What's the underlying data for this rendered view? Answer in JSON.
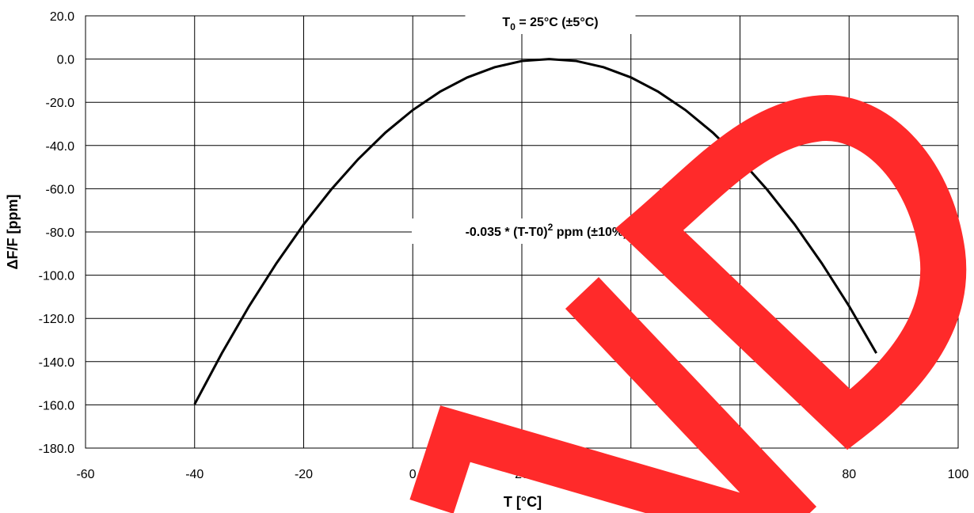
{
  "chart_data": {
    "type": "line",
    "annotations": [
      [
        "T",
        "0",
        " = 25°C (±5°C)"
      ],
      [
        "-0.035  * (T-T0)",
        "2",
        " ppm (±10%)"
      ]
    ],
    "xlabel": "T [°C]",
    "ylabel": "ΔF/F [ppm]",
    "x": [
      -40,
      -35,
      -30,
      -25,
      -20,
      -15,
      -10,
      -5,
      0,
      5,
      10,
      15,
      20,
      25,
      30,
      35,
      40,
      45,
      50,
      55,
      60,
      65,
      70,
      75,
      80,
      85
    ],
    "values": [
      -159.7,
      -136.1,
      -114.3,
      -94.5,
      -76.5,
      -60.5,
      -46.3,
      -34.0,
      -23.6,
      -15.1,
      -8.5,
      -3.8,
      -0.9,
      0,
      -0.9,
      -3.8,
      -8.5,
      -15.1,
      -23.6,
      -34.0,
      -46.3,
      -60.5,
      -76.5,
      -94.5,
      -114.3,
      -136.1
    ],
    "color": "#000000",
    "xlim": [
      -60,
      100
    ],
    "xticks": [
      -60,
      -40,
      -20,
      0,
      20,
      40,
      60,
      80,
      100
    ],
    "ylim": [
      -180,
      20
    ],
    "yticks": [
      {
        "value": -180,
        "label": "-180.0"
      },
      {
        "value": -160,
        "label": "-160.0"
      },
      {
        "value": -140,
        "label": "-140.0"
      },
      {
        "value": -120,
        "label": "-120.0"
      },
      {
        "value": -100,
        "label": "-100.0"
      },
      {
        "value": -80,
        "label": "-80.0"
      },
      {
        "value": -60,
        "label": "-60.0"
      },
      {
        "value": -40,
        "label": "-40.0"
      },
      {
        "value": -20,
        "label": "-20.0"
      },
      {
        "value": 0,
        "label": "0.0"
      },
      {
        "value": 20,
        "label": "20.0"
      }
    ],
    "grid": true
  }
}
